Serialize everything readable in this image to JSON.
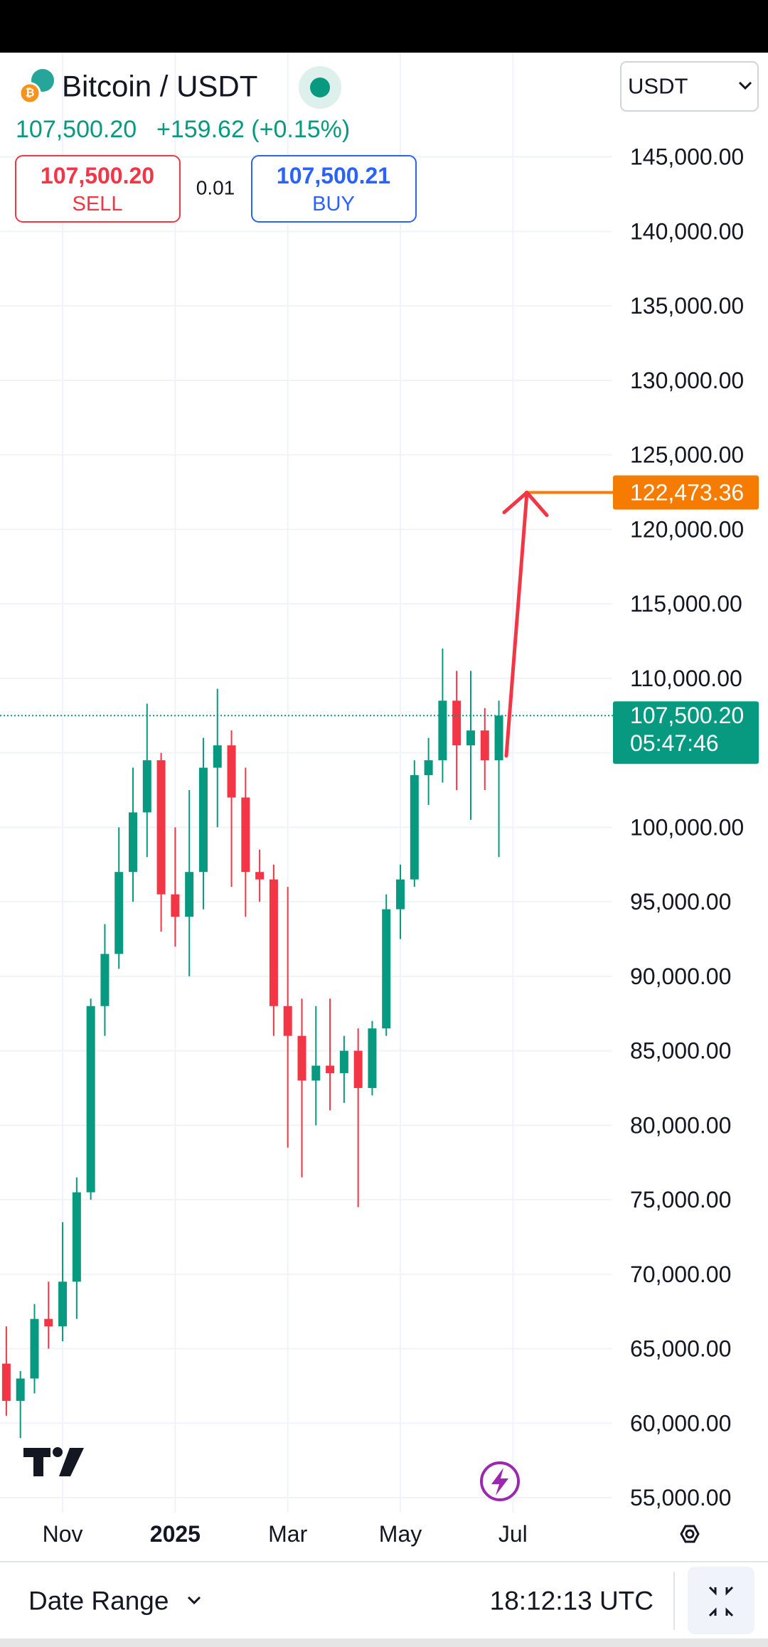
{
  "header": {
    "symbol": "Bitcoin / USDT",
    "price": "107,500.20",
    "change": "+159.62 (+0.15%)",
    "currency": "USDT"
  },
  "trade": {
    "sell_price": "107,500.20",
    "sell_label": "SELL",
    "quantity": "0.01",
    "buy_price": "107,500.21",
    "buy_label": "BUY"
  },
  "chart_data": {
    "type": "candlestick",
    "categories": [
      null,
      null,
      null,
      null,
      "Nov",
      null,
      null,
      null,
      null,
      null,
      null,
      null,
      "2025",
      null,
      null,
      null,
      null,
      null,
      null,
      null,
      "Mar",
      null,
      null,
      null,
      null,
      null,
      null,
      null,
      "May",
      null,
      null,
      null,
      null,
      null,
      null,
      null,
      "Jul"
    ],
    "series": [
      {
        "up_color": "#089981",
        "down_color": "#f23645",
        "values": [
          [
            64000,
            66500,
            60500,
            61500
          ],
          [
            61500,
            63500,
            59000,
            63000
          ],
          [
            63000,
            68000,
            62000,
            67000
          ],
          [
            67000,
            69500,
            65000,
            66500
          ],
          [
            66500,
            73500,
            65500,
            69500
          ],
          [
            69500,
            76500,
            67000,
            75500
          ],
          [
            75500,
            88500,
            75000,
            88000
          ],
          [
            88000,
            93500,
            86000,
            91500
          ],
          [
            91500,
            100000,
            90500,
            97000
          ],
          [
            97000,
            104000,
            95000,
            101000
          ],
          [
            101000,
            108300,
            98000,
            104500
          ],
          [
            104500,
            105000,
            93000,
            95500
          ],
          [
            95500,
            100000,
            92000,
            94000
          ],
          [
            94000,
            102500,
            90000,
            97000
          ],
          [
            97000,
            106000,
            94500,
            104000
          ],
          [
            104000,
            109300,
            100000,
            105500
          ],
          [
            105500,
            106500,
            96000,
            102000
          ],
          [
            102000,
            104000,
            94000,
            97000
          ],
          [
            97000,
            98500,
            95000,
            96500
          ],
          [
            96500,
            97500,
            86000,
            88000
          ],
          [
            88000,
            96000,
            78500,
            86000
          ],
          [
            86000,
            88500,
            76500,
            83000
          ],
          [
            83000,
            88000,
            80000,
            84000
          ],
          [
            84000,
            88500,
            81000,
            83500
          ],
          [
            83500,
            86000,
            81500,
            85000
          ],
          [
            85000,
            86500,
            74500,
            82500
          ],
          [
            82500,
            87000,
            82000,
            86500
          ],
          [
            86500,
            95500,
            86000,
            94500
          ],
          [
            94500,
            97500,
            92500,
            96500
          ],
          [
            96500,
            104500,
            96000,
            103500
          ],
          [
            103500,
            106000,
            101500,
            104500
          ],
          [
            104500,
            112000,
            103000,
            108500
          ],
          [
            108500,
            110500,
            102500,
            105500
          ],
          [
            105500,
            110500,
            100500,
            106500
          ],
          [
            106500,
            108000,
            102500,
            104500
          ],
          [
            104500,
            108500,
            98000,
            107500.2
          ],
          null
        ]
      }
    ],
    "ylim": [
      54000,
      152000
    ],
    "yticks": [
      {
        "value": 55000,
        "label": "55,000.00"
      },
      {
        "value": 60000,
        "label": "60,000.00"
      },
      {
        "value": 65000,
        "label": "65,000.00"
      },
      {
        "value": 70000,
        "label": "70,000.00"
      },
      {
        "value": 75000,
        "label": "75,000.00"
      },
      {
        "value": 80000,
        "label": "80,000.00"
      },
      {
        "value": 85000,
        "label": "85,000.00"
      },
      {
        "value": 90000,
        "label": "90,000.00"
      },
      {
        "value": 95000,
        "label": "95,000.00"
      },
      {
        "value": 100000,
        "label": "100,000.00"
      },
      {
        "value": 105000,
        "label": "105,000.00"
      },
      {
        "value": 110000,
        "label": "110,000.00"
      },
      {
        "value": 115000,
        "label": "115,000.00"
      },
      {
        "value": 120000,
        "label": "120,000.00"
      },
      {
        "value": 125000,
        "label": "125,000.00"
      },
      {
        "value": 130000,
        "label": "130,000.00"
      },
      {
        "value": 135000,
        "label": "135,000.00"
      },
      {
        "value": 140000,
        "label": "140,000.00"
      },
      {
        "value": 145000,
        "label": "145,000.00"
      }
    ],
    "grid": true,
    "last_price": {
      "value": 107500.2,
      "label": "107,500.20",
      "countdown": "05:47:46",
      "color": "#089981"
    },
    "target_line": {
      "value": 122473.36,
      "label": "122,473.36",
      "color": "#f57c00"
    },
    "arrow": {
      "start": 104800,
      "color": "#f23645"
    }
  },
  "footer": {
    "date_range": "Date Range",
    "time": "18:12:13 UTC"
  }
}
